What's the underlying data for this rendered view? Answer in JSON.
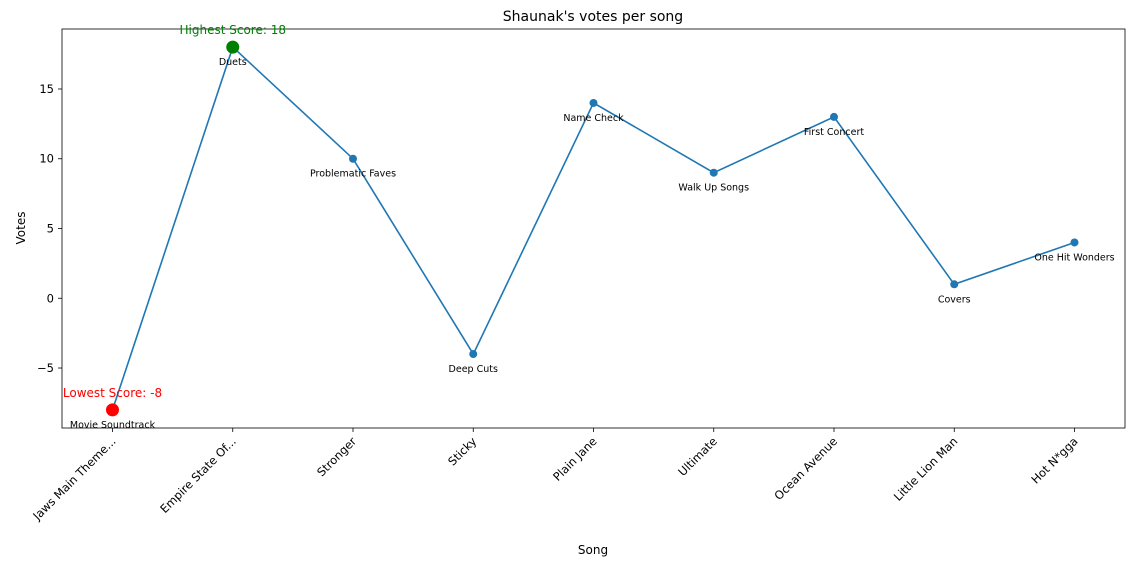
{
  "chart_data": {
    "type": "line",
    "title": "Shaunak's votes per song",
    "xlabel": "Song",
    "ylabel": "Votes",
    "categories": [
      "Jaws Main Theme...",
      "Empire State Of...",
      "Stronger",
      "Sticky",
      "Plain Jane",
      "Ultimate",
      "Ocean Avenue",
      "Little Lion Man",
      "Hot N*gga"
    ],
    "values": [
      -8,
      18,
      10,
      -4,
      14,
      9,
      13,
      1,
      4
    ],
    "point_labels": [
      "Movie Soundtrack",
      "Duets",
      "Problematic Faves",
      "Deep Cuts",
      "Name Check",
      "Walk Up Songs",
      "First Concert",
      "Covers",
      "One Hit Wonders"
    ],
    "ylim": [
      -9.3,
      19.3
    ],
    "yticks": [
      -5,
      0,
      5,
      10,
      15
    ],
    "grid": false,
    "line_color": "#1f77b4",
    "highlights": [
      {
        "index": 1,
        "label": "Highest Score: 18",
        "color": "#008000"
      },
      {
        "index": 0,
        "label": "Lowest Score: -8",
        "color": "#ff0000"
      }
    ]
  }
}
